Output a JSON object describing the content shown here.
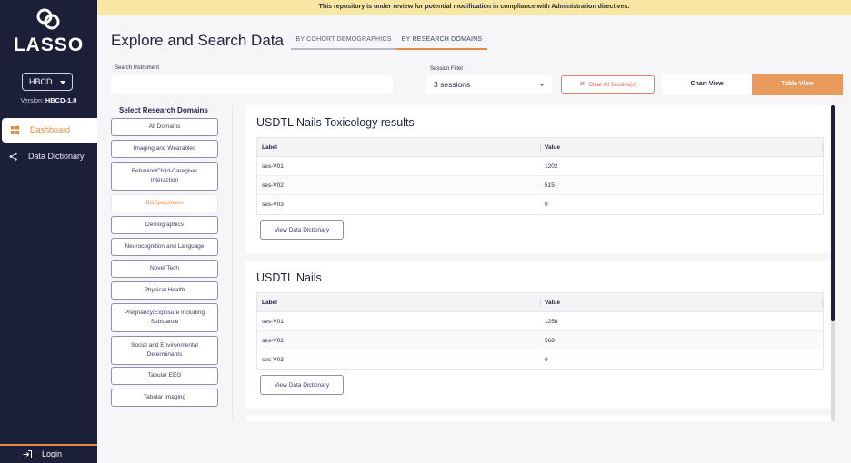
{
  "sidebar": {
    "logo_text": "LASSO",
    "study_select": "HBCD",
    "version_label": "Version:",
    "version_value": "HBCD-1.0",
    "nav": [
      {
        "label": "Dashboard"
      },
      {
        "label": "Data Dictionary"
      }
    ],
    "login_label": "Login"
  },
  "banner": "This repository is under review for potential modification in compliance with Administration directives.",
  "header": {
    "title": "Explore and Search Data",
    "tabs": [
      {
        "label": "BY COHORT DEMOGRAPHICS"
      },
      {
        "label": "BY RESEARCH DOMAINS"
      }
    ]
  },
  "filters": {
    "search_label": "Search Instrument",
    "search_value": "",
    "session_label": "Session Filter",
    "session_value": "3 sessions",
    "clear_label": "Clear All Session(s)",
    "chart_view": "Chart View",
    "table_view": "Table View"
  },
  "domains": {
    "title": "Select Research Domains",
    "items": [
      {
        "label": "All Domains"
      },
      {
        "label": "Imaging and Wearables"
      },
      {
        "label": "Behavior/Child-Caregiver Interaction"
      },
      {
        "label": "BioSpecimens"
      },
      {
        "label": "Demographics"
      },
      {
        "label": "Neurocognition and Language"
      },
      {
        "label": "Novel Tech"
      },
      {
        "label": "Physical Health"
      },
      {
        "label": "Pregnancy/Exposure Including Substance"
      },
      {
        "label": "Social and Environmental Determinants"
      },
      {
        "label": "Tabular EEG"
      },
      {
        "label": "Tabular Imaging"
      }
    ],
    "active_index": 3
  },
  "results": [
    {
      "title": "USDTL Nails Toxicology results",
      "columns": [
        "Label",
        "Value"
      ],
      "rows": [
        {
          "label": "ses-V01",
          "value": "1202"
        },
        {
          "label": "ses-V02",
          "value": "515"
        },
        {
          "label": "ses-V03",
          "value": "0"
        }
      ],
      "button": "View Data Dictionary"
    },
    {
      "title": "USDTL Nails",
      "columns": [
        "Label",
        "Value"
      ],
      "rows": [
        {
          "label": "ses-V01",
          "value": "1258"
        },
        {
          "label": "ses-V02",
          "value": "568"
        },
        {
          "label": "ses-V03",
          "value": "0"
        }
      ],
      "button": "View Data Dictionary"
    }
  ],
  "colors": {
    "sidebar_bg": "#1c1f38",
    "accent": "#e58a41",
    "banner_bg": "#f8e6a3",
    "danger": "#d9574c"
  }
}
